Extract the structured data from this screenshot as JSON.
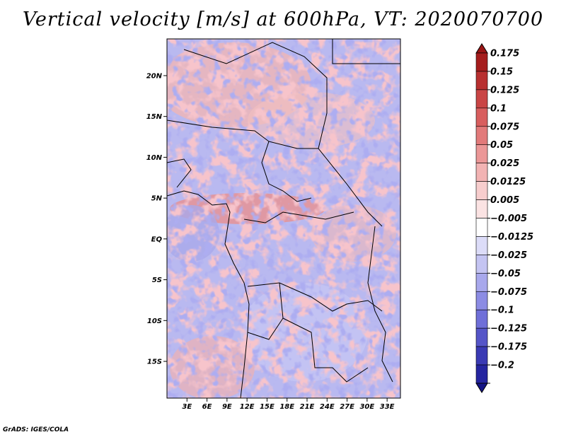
{
  "title": "Vertical velocity [m/s] at 600hPa, VT: 2020070700",
  "credit": "GrADS: IGES/COLA",
  "map": {
    "lat_range": [
      -19.5,
      24.5
    ],
    "lon_range": [
      0,
      35
    ],
    "lat_ticks": [
      {
        "value": 20,
        "label": "20N"
      },
      {
        "value": 15,
        "label": "15N"
      },
      {
        "value": 10,
        "label": "10N"
      },
      {
        "value": 5,
        "label": "5N"
      },
      {
        "value": 0,
        "label": "EQ"
      },
      {
        "value": -5,
        "label": "5S"
      },
      {
        "value": -10,
        "label": "10S"
      },
      {
        "value": -15,
        "label": "15S"
      }
    ],
    "lon_ticks": [
      {
        "value": 3,
        "label": "3E"
      },
      {
        "value": 6,
        "label": "6E"
      },
      {
        "value": 9,
        "label": "9E"
      },
      {
        "value": 12,
        "label": "12E"
      },
      {
        "value": 15,
        "label": "15E"
      },
      {
        "value": 18,
        "label": "18E"
      },
      {
        "value": 21,
        "label": "21E"
      },
      {
        "value": 24,
        "label": "24E"
      },
      {
        "value": 27,
        "label": "27E"
      },
      {
        "value": 30,
        "label": "30E"
      },
      {
        "value": 33,
        "label": "33E"
      }
    ]
  },
  "colorbar": {
    "levels": [
      {
        "label": "0.175",
        "color": "#a51d1d"
      },
      {
        "label": "0.15",
        "color": "#b83030"
      },
      {
        "label": "0.125",
        "color": "#c94545"
      },
      {
        "label": "0.1",
        "color": "#d85e5e"
      },
      {
        "label": "0.075",
        "color": "#e27a7a"
      },
      {
        "label": "0.05",
        "color": "#eb9797"
      },
      {
        "label": "0.025",
        "color": "#f2b3b3"
      },
      {
        "label": "0.0125",
        "color": "#f7cdcd"
      },
      {
        "label": "0.005",
        "color": "#fbe3e3"
      },
      {
        "label": "−0.005",
        "color": "#ffffff"
      },
      {
        "label": "−0.0125",
        "color": "#dcdcf8"
      },
      {
        "label": "−0.025",
        "color": "#c4c4f2"
      },
      {
        "label": "−0.05",
        "color": "#a8a8ec"
      },
      {
        "label": "−0.075",
        "color": "#8c8ce4"
      },
      {
        "label": "−0.1",
        "color": "#6f6fd8"
      },
      {
        "label": "−0.125",
        "color": "#5555c8"
      },
      {
        "label": "−0.175",
        "color": "#3a3ab4"
      },
      {
        "label": "−0.2",
        "color": "#2525a0"
      }
    ],
    "top_color": "#9a1515",
    "bottom_color": "#141485"
  }
}
